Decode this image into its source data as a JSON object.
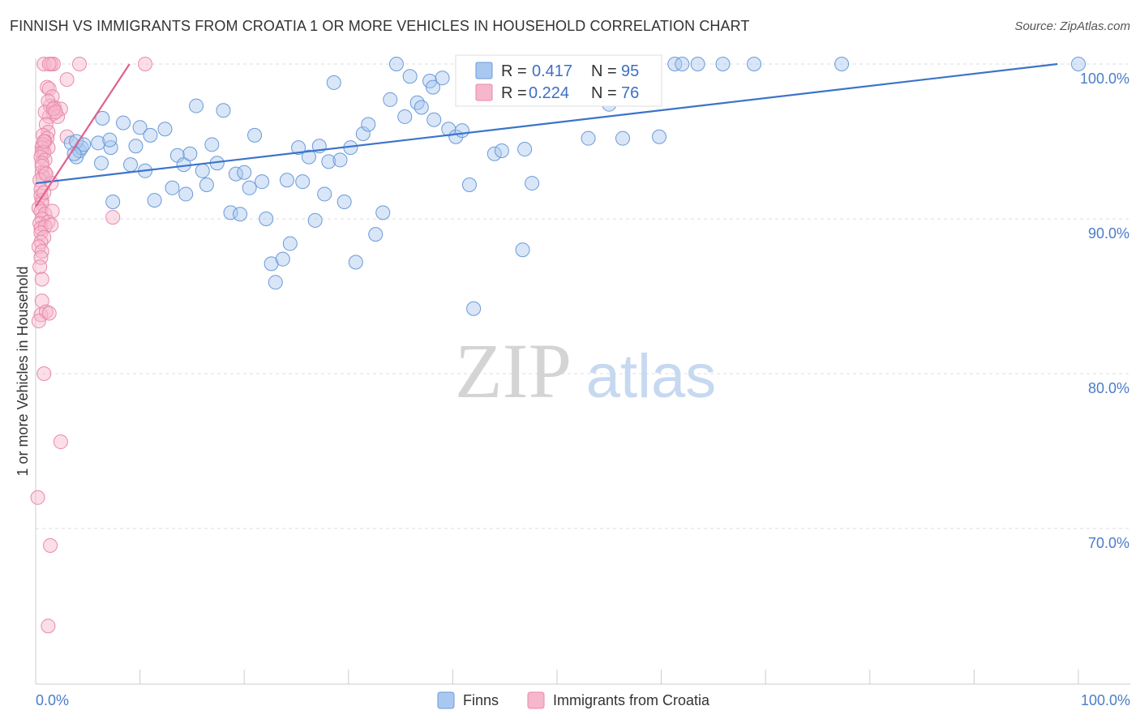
{
  "title": "FINNISH VS IMMIGRANTS FROM CROATIA 1 OR MORE VEHICLES IN HOUSEHOLD CORRELATION CHART",
  "source": "Source: ZipAtlas.com",
  "watermark": {
    "zip": "ZIP",
    "atlas": "atlas"
  },
  "colors": {
    "blue_fill": "#a9c8f0",
    "blue_stroke": "#6a9ad8",
    "blue_line": "#3b74c8",
    "pink_fill": "#f6b6cb",
    "pink_stroke": "#e88aaa",
    "pink_line": "#e0608e",
    "tick_text": "#4a7cc9",
    "grid": "#dddddd"
  },
  "legend_top": {
    "r_label": "R =",
    "n_label": "N =",
    "rows": [
      {
        "r": "0.417",
        "n": "95"
      },
      {
        "r": "0.224",
        "n": "76"
      }
    ]
  },
  "legend_bottom": [
    "Finns",
    "Immigrants from Croatia"
  ],
  "chart_data": {
    "type": "scatter",
    "title": "FINNISH VS IMMIGRANTS FROM CROATIA 1 OR MORE VEHICLES IN HOUSEHOLD CORRELATION CHART",
    "xlabel": "",
    "ylabel": "1 or more Vehicles in Household",
    "xlim": [
      0,
      100
    ],
    "ylim": [
      61.5,
      101.2
    ],
    "x_tick_labels": [
      "0.0%",
      "100.0%"
    ],
    "y_ticks": [
      {
        "value": 100,
        "label": "100.0%"
      },
      {
        "value": 90,
        "label": "90.0%"
      },
      {
        "value": 80,
        "label": "80.0%"
      },
      {
        "value": 70,
        "label": "70.0%"
      }
    ],
    "grid": "horizontal-dashed",
    "legend_position": "bottom-center",
    "series": [
      {
        "name": "Finns",
        "r": 0.417,
        "n": 95,
        "trend": [
          [
            0,
            92.3
          ],
          [
            98,
            100.0
          ]
        ],
        "points": [
          [
            3.9,
            94.0
          ],
          [
            4.2,
            94.4
          ],
          [
            3.4,
            94.9
          ],
          [
            4.4,
            94.6
          ],
          [
            3.9,
            95.0
          ],
          [
            4.6,
            94.8
          ],
          [
            3.7,
            94.2
          ],
          [
            6.3,
            93.6
          ],
          [
            7.2,
            94.6
          ],
          [
            7.4,
            91.1
          ],
          [
            6.0,
            94.9
          ],
          [
            6.4,
            96.5
          ],
          [
            7.1,
            95.1
          ],
          [
            8.4,
            96.2
          ],
          [
            9.1,
            93.5
          ],
          [
            9.6,
            94.7
          ],
          [
            10.0,
            95.9
          ],
          [
            10.5,
            93.1
          ],
          [
            11.0,
            95.4
          ],
          [
            11.4,
            91.2
          ],
          [
            12.4,
            95.8
          ],
          [
            13.1,
            92.0
          ],
          [
            13.6,
            94.1
          ],
          [
            14.2,
            93.5
          ],
          [
            14.4,
            91.6
          ],
          [
            14.8,
            94.2
          ],
          [
            15.4,
            97.3
          ],
          [
            16.0,
            93.1
          ],
          [
            16.4,
            92.2
          ],
          [
            16.9,
            94.8
          ],
          [
            17.4,
            93.6
          ],
          [
            18.0,
            97.0
          ],
          [
            18.7,
            90.4
          ],
          [
            19.2,
            92.9
          ],
          [
            19.6,
            90.3
          ],
          [
            20.0,
            93.0
          ],
          [
            20.5,
            92.0
          ],
          [
            21.0,
            95.4
          ],
          [
            21.7,
            92.4
          ],
          [
            22.1,
            90.0
          ],
          [
            22.6,
            87.1
          ],
          [
            23.0,
            85.9
          ],
          [
            23.7,
            87.4
          ],
          [
            24.1,
            92.5
          ],
          [
            24.4,
            88.4
          ],
          [
            25.2,
            94.6
          ],
          [
            25.6,
            92.4
          ],
          [
            26.2,
            94.0
          ],
          [
            26.8,
            89.9
          ],
          [
            27.2,
            94.7
          ],
          [
            27.7,
            91.6
          ],
          [
            28.1,
            93.7
          ],
          [
            28.6,
            98.8
          ],
          [
            29.2,
            93.8
          ],
          [
            29.6,
            91.1
          ],
          [
            30.2,
            94.6
          ],
          [
            30.7,
            87.2
          ],
          [
            31.4,
            95.5
          ],
          [
            31.9,
            96.1
          ],
          [
            32.6,
            89.0
          ],
          [
            33.3,
            90.4
          ],
          [
            34.0,
            97.7
          ],
          [
            34.6,
            100.0
          ],
          [
            35.4,
            96.6
          ],
          [
            35.9,
            99.2
          ],
          [
            36.6,
            97.5
          ],
          [
            37.0,
            97.2
          ],
          [
            37.8,
            98.9
          ],
          [
            38.1,
            98.5
          ],
          [
            39.0,
            99.1
          ],
          [
            38.2,
            96.4
          ],
          [
            39.6,
            95.8
          ],
          [
            40.3,
            95.3
          ],
          [
            40.9,
            95.7
          ],
          [
            41.6,
            92.2
          ],
          [
            42.0,
            84.2
          ],
          [
            42.6,
            100.0
          ],
          [
            44.0,
            94.2
          ],
          [
            44.7,
            94.4
          ],
          [
            46.9,
            94.5
          ],
          [
            47.6,
            92.3
          ],
          [
            46.7,
            88.0
          ],
          [
            50.0,
            100.0
          ],
          [
            55.0,
            97.4
          ],
          [
            53.0,
            95.2
          ],
          [
            56.3,
            95.2
          ],
          [
            58.8,
            100.0
          ],
          [
            59.8,
            95.3
          ],
          [
            61.3,
            100.0
          ],
          [
            62.0,
            100.0
          ],
          [
            63.5,
            100.0
          ],
          [
            65.9,
            100.0
          ],
          [
            68.9,
            100.0
          ],
          [
            77.3,
            100.0
          ],
          [
            100.0,
            100.0
          ]
        ]
      },
      {
        "name": "Immigrants from Croatia",
        "r": 0.224,
        "n": 76,
        "trend": [
          [
            0,
            90.8
          ],
          [
            9,
            100.0
          ]
        ],
        "points": [
          [
            0.8,
            100.0
          ],
          [
            1.5,
            100.0
          ],
          [
            1.7,
            100.0
          ],
          [
            1.3,
            100.0
          ],
          [
            4.2,
            100.0
          ],
          [
            10.5,
            100.0
          ],
          [
            3.0,
            99.0
          ],
          [
            1.1,
            98.5
          ],
          [
            1.3,
            98.4
          ],
          [
            1.6,
            97.9
          ],
          [
            1.4,
            97.3
          ],
          [
            1.8,
            97.2
          ],
          [
            1.2,
            97.6
          ],
          [
            2.4,
            97.1
          ],
          [
            1.7,
            96.8
          ],
          [
            1.3,
            96.6
          ],
          [
            2.1,
            96.6
          ],
          [
            0.9,
            96.9
          ],
          [
            1.0,
            96.1
          ],
          [
            1.2,
            95.6
          ],
          [
            0.7,
            95.4
          ],
          [
            1.1,
            95.2
          ],
          [
            0.9,
            95.0
          ],
          [
            0.7,
            94.8
          ],
          [
            1.2,
            94.6
          ],
          [
            0.6,
            94.6
          ],
          [
            0.6,
            94.3
          ],
          [
            0.8,
            94.3
          ],
          [
            0.5,
            94.0
          ],
          [
            0.9,
            93.8
          ],
          [
            0.6,
            93.6
          ],
          [
            3.0,
            95.3
          ],
          [
            0.6,
            93.0
          ],
          [
            0.9,
            93.0
          ],
          [
            0.7,
            92.7
          ],
          [
            1.5,
            92.3
          ],
          [
            0.4,
            92.5
          ],
          [
            0.5,
            91.9
          ],
          [
            0.5,
            91.5
          ],
          [
            0.6,
            91.2
          ],
          [
            0.6,
            91.0
          ],
          [
            0.3,
            90.7
          ],
          [
            0.5,
            90.5
          ],
          [
            0.9,
            90.3
          ],
          [
            1.6,
            90.5
          ],
          [
            0.6,
            90.0
          ],
          [
            1.2,
            89.8
          ],
          [
            7.4,
            90.1
          ],
          [
            0.4,
            89.7
          ],
          [
            0.5,
            89.4
          ],
          [
            0.9,
            89.5
          ],
          [
            0.5,
            89.1
          ],
          [
            0.8,
            88.8
          ],
          [
            0.5,
            88.5
          ],
          [
            0.3,
            88.2
          ],
          [
            0.6,
            87.9
          ],
          [
            0.5,
            87.5
          ],
          [
            0.4,
            86.9
          ],
          [
            0.6,
            86.1
          ],
          [
            0.6,
            84.7
          ],
          [
            0.5,
            83.8
          ],
          [
            1.0,
            84.0
          ],
          [
            1.3,
            83.9
          ],
          [
            0.3,
            83.4
          ],
          [
            0.8,
            80.0
          ],
          [
            2.4,
            75.6
          ],
          [
            0.2,
            72.0
          ],
          [
            1.4,
            68.9
          ],
          [
            1.2,
            63.7
          ],
          [
            1.7,
            97.1
          ],
          [
            1.9,
            96.9
          ],
          [
            0.8,
            95.0
          ],
          [
            0.6,
            93.4
          ],
          [
            1.0,
            92.9
          ],
          [
            0.8,
            91.7
          ],
          [
            1.5,
            89.6
          ]
        ]
      }
    ]
  }
}
